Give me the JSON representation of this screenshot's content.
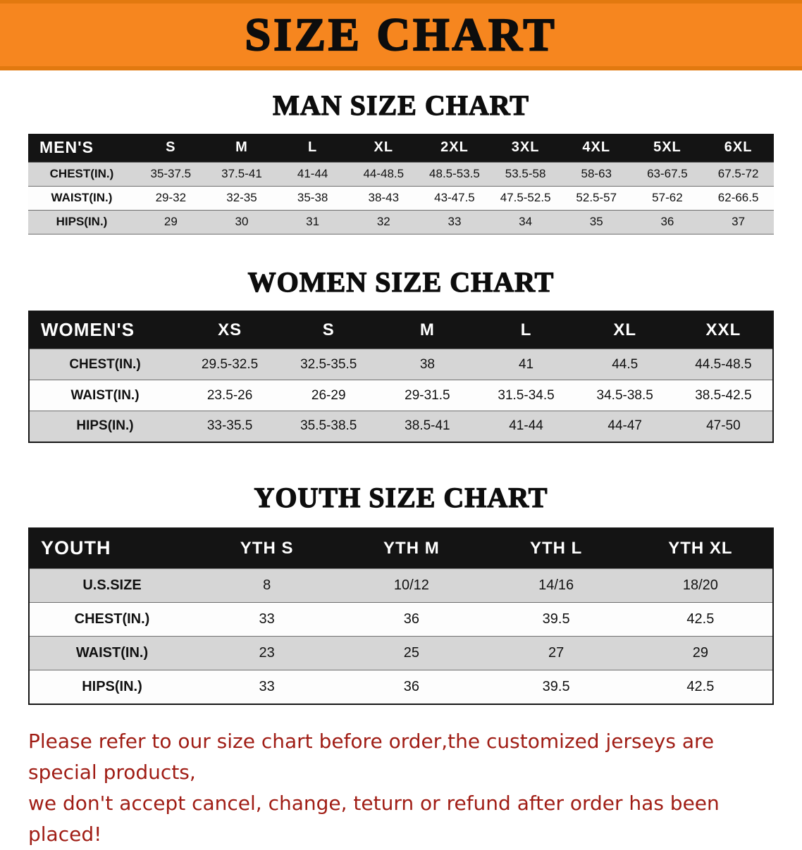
{
  "banner": {
    "title": "SIZE CHART"
  },
  "colors": {
    "banner_bg": "#f6861f",
    "header_row_bg": "#141414",
    "stripe": "#d6d6d6",
    "note_red": "#a01d15"
  },
  "men": {
    "heading": "MAN SIZE CHART",
    "table": {
      "header": [
        "MEN'S",
        "S",
        "M",
        "L",
        "XL",
        "2XL",
        "3XL",
        "4XL",
        "5XL",
        "6XL"
      ],
      "rows": [
        [
          "CHEST(IN.)",
          "35-37.5",
          "37.5-41",
          "41-44",
          "44-48.5",
          "48.5-53.5",
          "53.5-58",
          "58-63",
          "63-67.5",
          "67.5-72"
        ],
        [
          "WAIST(IN.)",
          "29-32",
          "32-35",
          "35-38",
          "38-43",
          "43-47.5",
          "47.5-52.5",
          "52.5-57",
          "57-62",
          "62-66.5"
        ],
        [
          "HIPS(IN.)",
          "29",
          "30",
          "31",
          "32",
          "33",
          "34",
          "35",
          "36",
          "37"
        ]
      ]
    }
  },
  "women": {
    "heading": "WOMEN SIZE CHART",
    "table": {
      "header": [
        "WOMEN'S",
        "XS",
        "S",
        "M",
        "L",
        "XL",
        "XXL"
      ],
      "rows": [
        [
          "CHEST(IN.)",
          "29.5-32.5",
          "32.5-35.5",
          "38",
          "41",
          "44.5",
          "44.5-48.5"
        ],
        [
          "WAIST(IN.)",
          "23.5-26",
          "26-29",
          "29-31.5",
          "31.5-34.5",
          "34.5-38.5",
          "38.5-42.5"
        ],
        [
          "HIPS(IN.)",
          "33-35.5",
          "35.5-38.5",
          "38.5-41",
          "41-44",
          "44-47",
          "47-50"
        ]
      ]
    }
  },
  "youth": {
    "heading": "YOUTH SIZE CHART",
    "table": {
      "header": [
        "YOUTH",
        "YTH S",
        "YTH M",
        "YTH L",
        "YTH XL"
      ],
      "rows": [
        [
          "U.S.SIZE",
          "8",
          "10/12",
          "14/16",
          "18/20"
        ],
        [
          "CHEST(IN.)",
          "33",
          "36",
          "39.5",
          "42.5"
        ],
        [
          "WAIST(IN.)",
          "23",
          "25",
          "27",
          "29"
        ],
        [
          "HIPS(IN.)",
          "33",
          "36",
          "39.5",
          "42.5"
        ]
      ]
    }
  },
  "note": {
    "line1": "Please refer to our size chart before order,the customized jerseys are special products,",
    "line2": "we don't accept cancel, change, teturn or refund after order has been placed!"
  }
}
